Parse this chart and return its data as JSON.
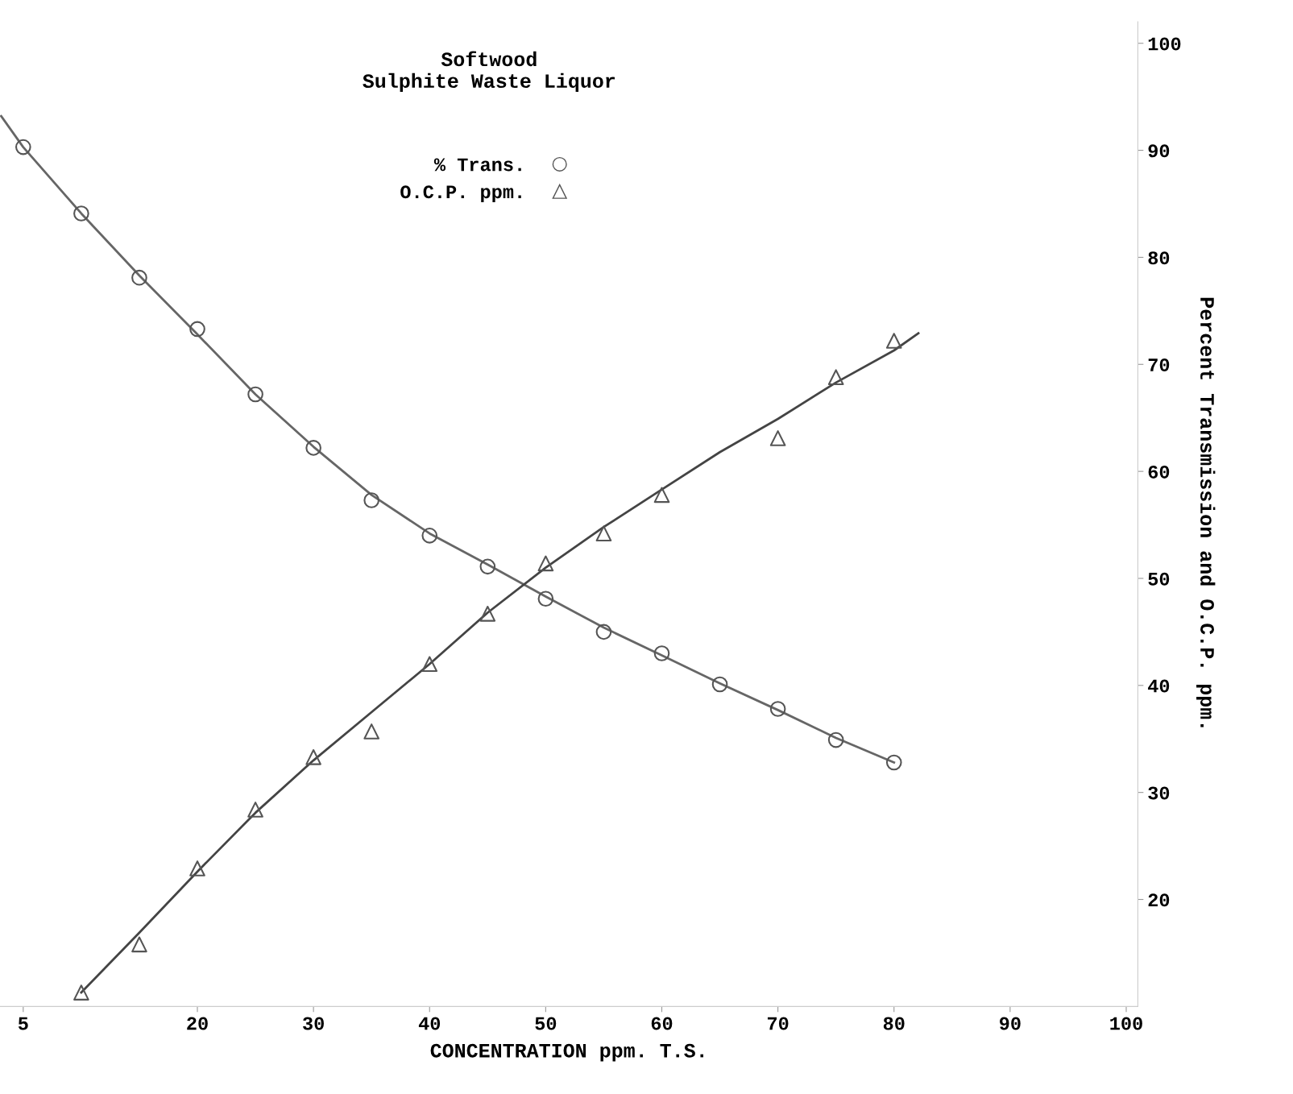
{
  "chart_data": {
    "type": "scatter",
    "title": "Softwood\nSulphite Waste Liquor",
    "xlabel": "CONCENTRATION ppm. T.S.",
    "ylabel": "Percent Transmission and O.C.P. ppm.",
    "xlim": [
      3,
      101
    ],
    "ylim": [
      10,
      102
    ],
    "xticks": [
      5,
      20,
      30,
      40,
      50,
      60,
      70,
      80,
      90,
      100
    ],
    "yticks": [
      20,
      30,
      40,
      50,
      60,
      70,
      80,
      90,
      100
    ],
    "grid": false,
    "legend": "top",
    "marker": "circle",
    "series": [
      {
        "name": "% Trans.",
        "color": "#555555",
        "x": [
          5,
          10,
          15,
          20,
          25,
          30,
          35,
          40,
          45,
          50,
          55,
          60,
          65,
          70,
          75,
          80
        ],
        "values": [
          90.3,
          84.1,
          78.1,
          73.3,
          67.2,
          62.2,
          57.3,
          54.0,
          51.1,
          48.1,
          45.0,
          43.0,
          40.1,
          37.8,
          34.9,
          32.8
        ]
      },
      {
        "name": "O.C.P. ppm.",
        "marker": "triangle",
        "color": "#555555",
        "x": [
          10,
          15,
          20,
          25,
          30,
          35,
          40,
          45,
          50,
          55,
          60,
          70,
          75,
          80
        ],
        "values": [
          11.3,
          15.8,
          22.9,
          28.4,
          33.3,
          35.7,
          42.0,
          46.7,
          51.4,
          54.2,
          57.8,
          63.1,
          68.8,
          72.2
        ]
      },
      {
        "type": "line",
        "marker": "none",
        "color": "#666666",
        "x": [
          3.1,
          5,
          10,
          15,
          20,
          25,
          30,
          35,
          40,
          45,
          50,
          55,
          60,
          65,
          70,
          75,
          80
        ],
        "values": [
          93.2,
          90.3,
          84.1,
          78.3,
          72.8,
          67.2,
          62.3,
          57.8,
          54.2,
          51.3,
          48.3,
          45.4,
          42.8,
          40.2,
          37.7,
          35.1,
          32.8
        ]
      },
      {
        "type": "line",
        "marker": "none",
        "color": "#444444",
        "x": [
          10,
          15,
          20,
          25,
          30,
          35,
          40,
          45,
          50,
          55,
          60,
          65,
          70,
          75,
          80,
          82.1
        ],
        "values": [
          11.3,
          16.9,
          22.6,
          28.1,
          33.0,
          37.5,
          42.0,
          46.8,
          51.0,
          54.8,
          58.3,
          61.8,
          64.9,
          68.3,
          71.3,
          72.9
        ]
      }
    ]
  }
}
